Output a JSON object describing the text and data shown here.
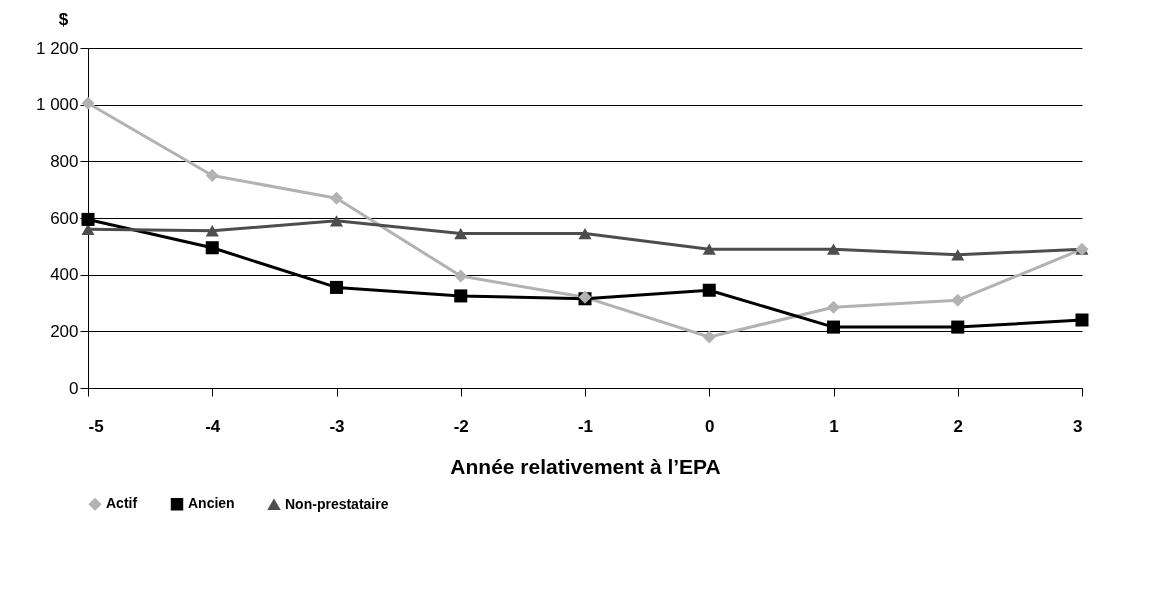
{
  "chart_data": {
    "type": "line",
    "ylabel": "$",
    "xlabel": "Année relativement à l’EPA",
    "x": [
      -5,
      -4,
      -3,
      -2,
      -1,
      0,
      1,
      2,
      3
    ],
    "series": [
      {
        "name": "Actif",
        "color": "#b2b2b2",
        "marker": "diamond",
        "values": [
          1005,
          750,
          670,
          395,
          320,
          180,
          285,
          310,
          490
        ]
      },
      {
        "name": "Ancien",
        "color": "#000000",
        "marker": "square",
        "values": [
          595,
          495,
          355,
          325,
          315,
          345,
          215,
          215,
          240
        ]
      },
      {
        "name": "Non-prestataire",
        "color": "#4d4d4d",
        "marker": "triangle",
        "values": [
          560,
          555,
          590,
          545,
          545,
          490,
          490,
          470,
          490
        ]
      }
    ],
    "xlim": [
      -5,
      3
    ],
    "xticks": [
      -5,
      -4,
      -3,
      -2,
      -1,
      0,
      1,
      2,
      3
    ],
    "ylim": [
      0,
      1200
    ],
    "yticks": [
      0,
      200,
      400,
      600,
      800,
      {
        "value": 1000,
        "label": "1 000"
      },
      {
        "value": 1200,
        "label": "1 200"
      }
    ],
    "grid": "y",
    "legend": "bottom",
    "line_style": "solid"
  }
}
